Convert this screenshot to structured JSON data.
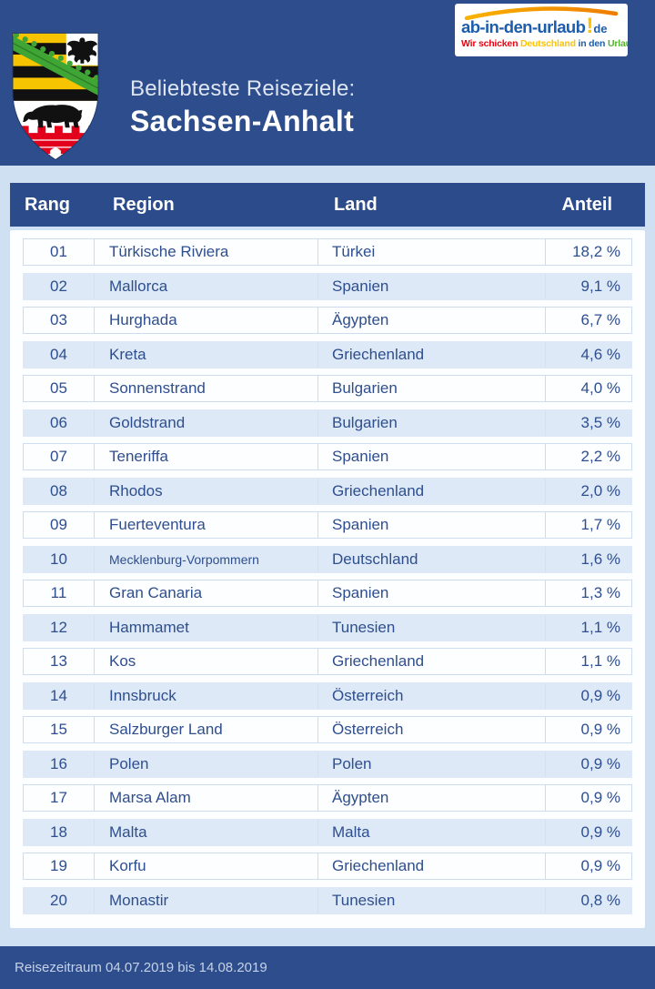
{
  "header": {
    "title_line1": "Beliebteste Reiseziele:",
    "title_line2": "Sachsen-Anhalt"
  },
  "logo": {
    "main": "ab-in-den-urlaub",
    "exclamation": "!",
    "tld": "de",
    "tagline": [
      {
        "text": "Wir schicken ",
        "color": "#e30613"
      },
      {
        "text": "Deutschland ",
        "color": "#fdc300"
      },
      {
        "text": "in den ",
        "color": "#1d5dad"
      },
      {
        "text": "Urlaub",
        "color": "#56b22e"
      }
    ]
  },
  "table": {
    "columns": [
      "Rang",
      "Region",
      "Land",
      "Anteil"
    ],
    "rows": [
      {
        "rang": "01",
        "region": "Türkische Riviera",
        "land": "Türkei",
        "anteil": "18,2 %"
      },
      {
        "rang": "02",
        "region": "Mallorca",
        "land": "Spanien",
        "anteil": "9,1 %"
      },
      {
        "rang": "03",
        "region": "Hurghada",
        "land": "Ägypten",
        "anteil": "6,7 %"
      },
      {
        "rang": "04",
        "region": "Kreta",
        "land": "Griechenland",
        "anteil": "4,6 %"
      },
      {
        "rang": "05",
        "region": "Sonnenstrand",
        "land": "Bulgarien",
        "anteil": "4,0 %"
      },
      {
        "rang": "06",
        "region": "Goldstrand",
        "land": "Bulgarien",
        "anteil": "3,5 %"
      },
      {
        "rang": "07",
        "region": "Teneriffa",
        "land": "Spanien",
        "anteil": "2,2 %"
      },
      {
        "rang": "08",
        "region": "Rhodos",
        "land": "Griechenland",
        "anteil": "2,0 %"
      },
      {
        "rang": "09",
        "region": "Fuerteventura",
        "land": "Spanien",
        "anteil": "1,7 %"
      },
      {
        "rang": "10",
        "region": "Mecklenburg-Vorpommern",
        "land": "Deutschland",
        "anteil": "1,6 %"
      },
      {
        "rang": "11",
        "region": "Gran Canaria",
        "land": "Spanien",
        "anteil": "1,3 %"
      },
      {
        "rang": "12",
        "region": "Hammamet",
        "land": "Tunesien",
        "anteil": "1,1 %"
      },
      {
        "rang": "13",
        "region": "Kos",
        "land": "Griechenland",
        "anteil": "1,1 %"
      },
      {
        "rang": "14",
        "region": "Innsbruck",
        "land": "Österreich",
        "anteil": "0,9 %"
      },
      {
        "rang": "15",
        "region": "Salzburger Land",
        "land": "Österreich",
        "anteil": "0,9 %"
      },
      {
        "rang": "16",
        "region": "Polen",
        "land": "Polen",
        "anteil": "0,9 %"
      },
      {
        "rang": "17",
        "region": "Marsa Alam",
        "land": "Ägypten",
        "anteil": "0,9 %"
      },
      {
        "rang": "18",
        "region": "Malta",
        "land": "Malta",
        "anteil": "0,9 %"
      },
      {
        "rang": "19",
        "region": "Korfu",
        "land": "Griechenland",
        "anteil": "0,9 %"
      },
      {
        "rang": "20",
        "region": "Monastir",
        "land": "Tunesien",
        "anteil": "0,8 %"
      }
    ]
  },
  "footer": {
    "text": "Reisezeitraum 04.07.2019 bis 14.08.2019"
  },
  "colors": {
    "header_bg": "#2d4d8d",
    "page_bg": "#cfe0f3",
    "table_header_bg": "#2b4b8b",
    "row_alt_bg": "#dde9f7",
    "row_text": "#2e4e8e",
    "logo_blue": "#1d5dad",
    "logo_yellow": "#fdc300"
  }
}
